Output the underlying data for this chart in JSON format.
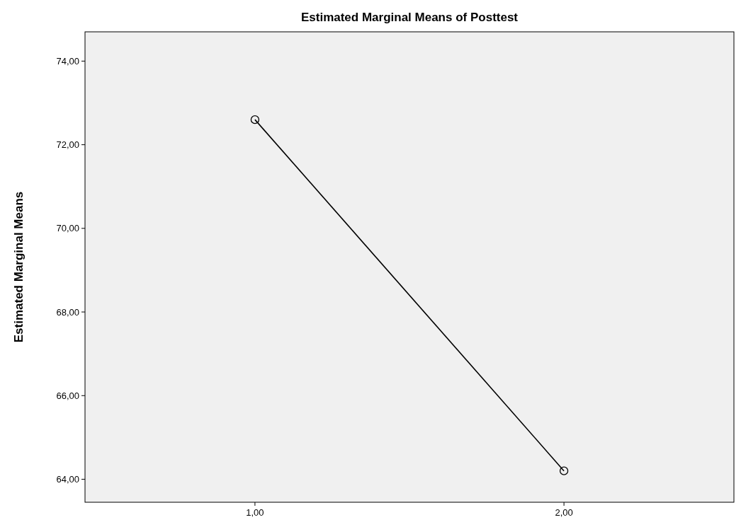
{
  "chart_data": {
    "type": "line",
    "title": "Estimated Marginal Means of Posttest",
    "ylabel": "Estimated Marginal Means",
    "categories": [
      "1,00",
      "2,00"
    ],
    "series": [
      {
        "color": "#000000",
        "values": [
          72.6,
          64.2
        ]
      }
    ],
    "ylim": [
      63.45,
      74.7
    ],
    "yticks": [
      {
        "value": 64,
        "label": "64,00"
      },
      {
        "value": 66,
        "label": "66,00"
      },
      {
        "value": 68,
        "label": "68,00"
      },
      {
        "value": 70,
        "label": "70,00"
      },
      {
        "value": 72,
        "label": "72,00"
      },
      {
        "value": 74,
        "label": "74,00"
      }
    ],
    "marker": "circle",
    "line_style": "solid"
  }
}
